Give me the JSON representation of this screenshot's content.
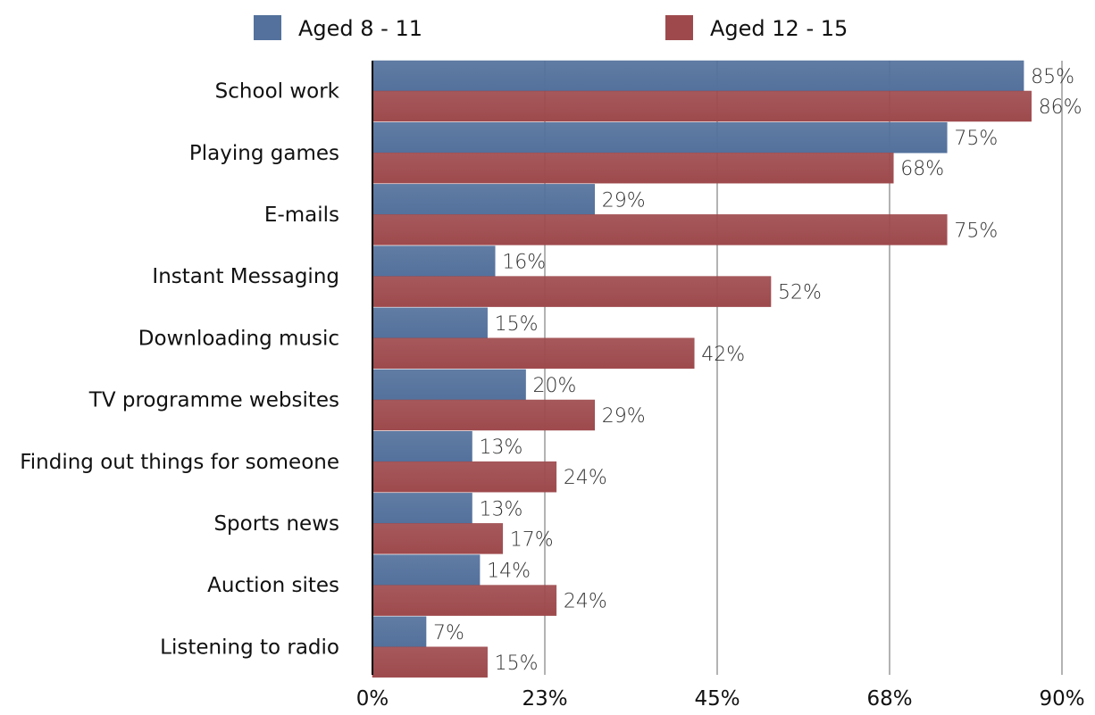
{
  "chart_data": {
    "type": "bar",
    "orientation": "horizontal",
    "categories": [
      "School work",
      "Playing games",
      "E-mails",
      "Instant Messaging",
      "Downloading music",
      "TV programme websites",
      "Finding out things for someone",
      "Sports news",
      "Auction sites",
      "Listening to radio"
    ],
    "series": [
      {
        "name": "Aged 8 - 11",
        "color": "#53719c",
        "values": [
          85,
          75,
          29,
          16,
          15,
          20,
          13,
          13,
          14,
          7
        ]
      },
      {
        "name": "Aged 12 - 15",
        "color": "#9e4a4d",
        "values": [
          86,
          68,
          75,
          52,
          42,
          29,
          24,
          17,
          24,
          15
        ]
      }
    ],
    "value_labels": [
      [
        "85%",
        "75%",
        "29%",
        "16%",
        "15%",
        "20%",
        "13%",
        "13%",
        "14%",
        "7%"
      ],
      [
        "86%",
        "68%",
        "75%",
        "52%",
        "42%",
        "29%",
        "24%",
        "17%",
        "24%",
        "15%"
      ]
    ],
    "xticks": [
      0,
      22.5,
      45,
      67.5,
      90
    ],
    "xtick_labels": [
      "0%",
      "23%",
      "45%",
      "68%",
      "90%"
    ],
    "xlim": [
      0,
      90
    ],
    "grid": true,
    "legend_position": "top"
  }
}
